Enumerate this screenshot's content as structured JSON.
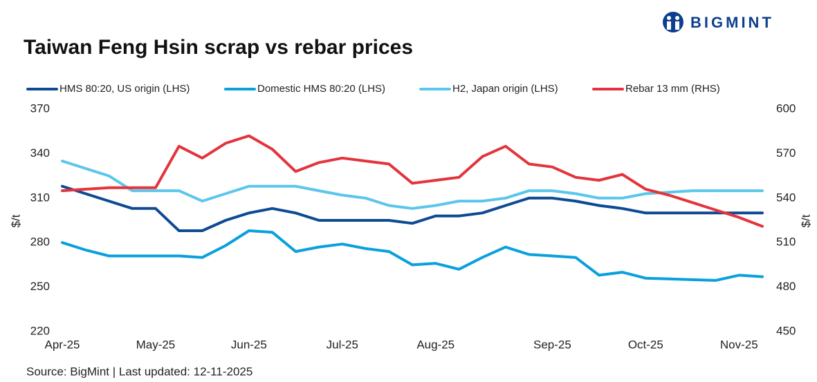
{
  "logo": "BIGMINT",
  "chart_data": {
    "type": "line",
    "title": "Taiwan Feng Hsin scrap vs rebar prices",
    "source": "Source: BigMint |  Last updated: 12-11-2025",
    "y_label": "$/t",
    "y2_label": "$/t",
    "categories": [
      "Apr-25",
      null,
      null,
      null,
      "May-25",
      null,
      null,
      null,
      "Jun-25",
      null,
      null,
      null,
      "Jul-25",
      null,
      null,
      null,
      "Aug-25",
      null,
      null,
      null,
      null,
      "Sep-25",
      null,
      null,
      null,
      "Oct-25",
      null,
      null,
      null,
      "Nov-25",
      null
    ],
    "ylim": [
      220,
      370
    ],
    "yticks": [
      220,
      250,
      280,
      310,
      340,
      370
    ],
    "y2lim": [
      450,
      600
    ],
    "y2ticks": [
      450,
      480,
      510,
      540,
      570,
      600
    ],
    "grid": false,
    "legend": "top",
    "series": [
      {
        "name": "HMS 80:20, US origin (LHS)",
        "color": "#0d4a94",
        "values": [
          318,
          313,
          308,
          303,
          303,
          288,
          288,
          295,
          300,
          303,
          300,
          295,
          295,
          295,
          295,
          293,
          298,
          298,
          300,
          305,
          310,
          310,
          308,
          305,
          303,
          300,
          300,
          300,
          300,
          300,
          300
        ]
      },
      {
        "name": "Domestic HMS 80:20 (LHS)",
        "color": "#0aa0dc",
        "values": [
          280,
          275,
          271,
          271,
          271,
          271,
          270,
          278,
          288,
          287,
          274,
          277,
          279,
          276,
          274,
          265,
          266,
          262,
          270,
          277,
          272,
          271,
          270,
          258,
          260,
          256,
          255.5,
          255,
          254.5,
          258,
          257
        ]
      },
      {
        "name": "H2, Japan origin (LHS)",
        "color": "#5bc6ec",
        "values": [
          335,
          330,
          325,
          315,
          315,
          315,
          308,
          313,
          318,
          318,
          318,
          315,
          312,
          310,
          305,
          303,
          305,
          308,
          308,
          310,
          315,
          315,
          313,
          310,
          310,
          313,
          314,
          315,
          315,
          315,
          315
        ]
      },
      {
        "name": "Rebar 13 mm (RHS)",
        "color": "#e3343c",
        "axis": "y2",
        "values": [
          545,
          546,
          547,
          547,
          547,
          575,
          567,
          577,
          582,
          573,
          558,
          564,
          567,
          565,
          563,
          550,
          552,
          554,
          568,
          575,
          563,
          561,
          554,
          552,
          556,
          546,
          542,
          537,
          532,
          527,
          521
        ]
      }
    ]
  }
}
